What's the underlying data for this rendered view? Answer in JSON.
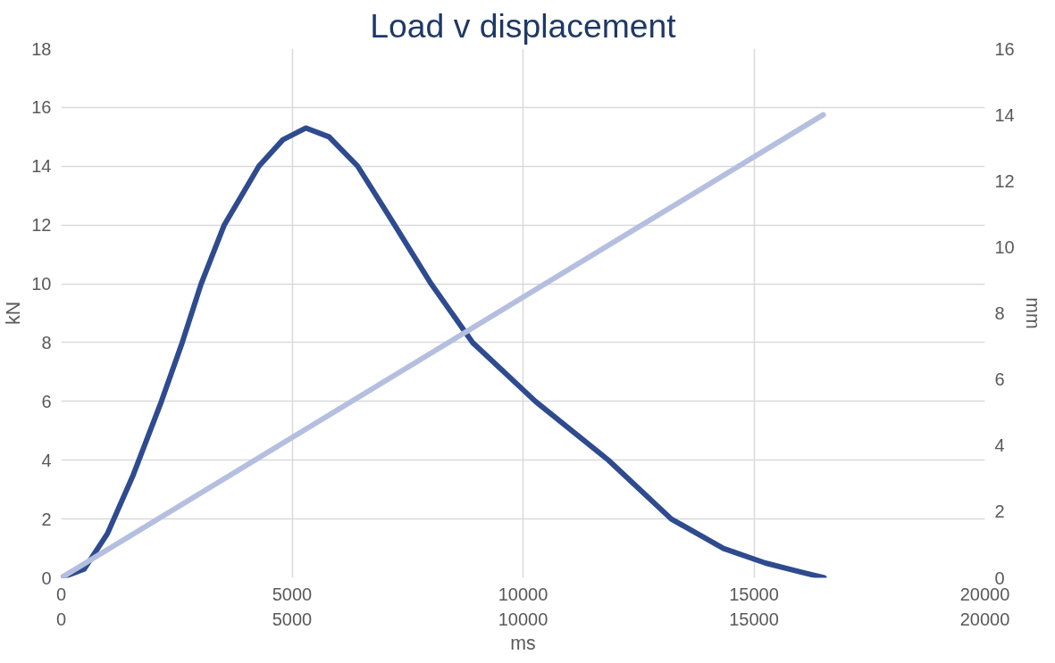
{
  "chart_data": {
    "type": "line",
    "title": "Load v displacement",
    "xlabel": "ms",
    "ylabel": "kN",
    "y2label": "mm",
    "xlim": [
      0,
      20000
    ],
    "xticks": [
      0,
      5000,
      10000,
      15000,
      20000
    ],
    "x2lim": [
      0,
      20000
    ],
    "x2ticks": [
      0,
      5000,
      10000,
      15000,
      20000
    ],
    "ylim": [
      0,
      18
    ],
    "yticks": [
      0,
      2,
      4,
      6,
      8,
      10,
      12,
      14,
      16,
      18
    ],
    "y2lim": [
      0,
      16
    ],
    "y2ticks": [
      0,
      2,
      4,
      6,
      8,
      10,
      12,
      14,
      16
    ],
    "grid": true,
    "marker": "none",
    "line_style": "solid",
    "series": [
      {
        "color": "#2f4b8f",
        "x": [
          0,
          500,
          1000,
          1560,
          2170,
          2620,
          3030,
          3530,
          4280,
          4800,
          5300,
          5800,
          6420,
          7220,
          8010,
          8910,
          10270,
          11850,
          13210,
          14340,
          15250,
          16000,
          16520
        ],
        "values": [
          0,
          0.3,
          1.5,
          3.5,
          6,
          8,
          10,
          12,
          14,
          14.9,
          15.3,
          15.0,
          14,
          12,
          10,
          8,
          6,
          4,
          2,
          1,
          0.5,
          0.2,
          0
        ]
      },
      {
        "color": "#b4bfe0",
        "axis": "y2",
        "x": [
          0,
          16500
        ],
        "values": [
          0,
          14
        ]
      }
    ]
  }
}
